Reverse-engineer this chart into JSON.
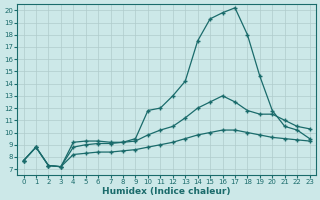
{
  "xlabel": "Humidex (Indice chaleur)",
  "ylabel": "",
  "background_color": "#cce8e8",
  "grid_color": "#b0cccc",
  "line_color": "#1a6b6b",
  "xlim": [
    -0.5,
    23.5
  ],
  "ylim": [
    6.5,
    20.5
  ],
  "x_ticks": [
    0,
    1,
    2,
    3,
    4,
    5,
    6,
    7,
    8,
    9,
    10,
    11,
    12,
    13,
    14,
    15,
    16,
    17,
    18,
    19,
    20,
    21,
    22,
    23
  ],
  "y_ticks": [
    7,
    8,
    9,
    10,
    11,
    12,
    13,
    14,
    15,
    16,
    17,
    18,
    19,
    20
  ],
  "line1_x": [
    0,
    1,
    2,
    3,
    4,
    5,
    6,
    7,
    8,
    9,
    10,
    11,
    12,
    13,
    14,
    15,
    16,
    17,
    18,
    19,
    20,
    21,
    22,
    23
  ],
  "line1_y": [
    7.7,
    8.8,
    7.3,
    7.2,
    9.2,
    9.3,
    9.3,
    9.2,
    9.2,
    9.5,
    11.8,
    12.0,
    13.0,
    14.2,
    17.5,
    19.3,
    19.8,
    20.2,
    18.0,
    14.6,
    11.8,
    10.5,
    10.2,
    9.5
  ],
  "line2_x": [
    0,
    1,
    2,
    3,
    4,
    5,
    6,
    7,
    8,
    9,
    10,
    11,
    12,
    13,
    14,
    15,
    16,
    17,
    18,
    19,
    20,
    21,
    22,
    23
  ],
  "line2_y": [
    7.7,
    8.8,
    7.3,
    7.2,
    8.8,
    9.0,
    9.1,
    9.1,
    9.2,
    9.3,
    9.8,
    10.2,
    10.5,
    11.2,
    12.0,
    12.5,
    13.0,
    12.5,
    11.8,
    11.5,
    11.5,
    11.0,
    10.5,
    10.3
  ],
  "line3_x": [
    0,
    1,
    2,
    3,
    4,
    5,
    6,
    7,
    8,
    9,
    10,
    11,
    12,
    13,
    14,
    15,
    16,
    17,
    18,
    19,
    20,
    21,
    22,
    23
  ],
  "line3_y": [
    7.7,
    8.8,
    7.3,
    7.2,
    8.2,
    8.3,
    8.4,
    8.4,
    8.5,
    8.6,
    8.8,
    9.0,
    9.2,
    9.5,
    9.8,
    10.0,
    10.2,
    10.2,
    10.0,
    9.8,
    9.6,
    9.5,
    9.4,
    9.3
  ],
  "marker": "+"
}
